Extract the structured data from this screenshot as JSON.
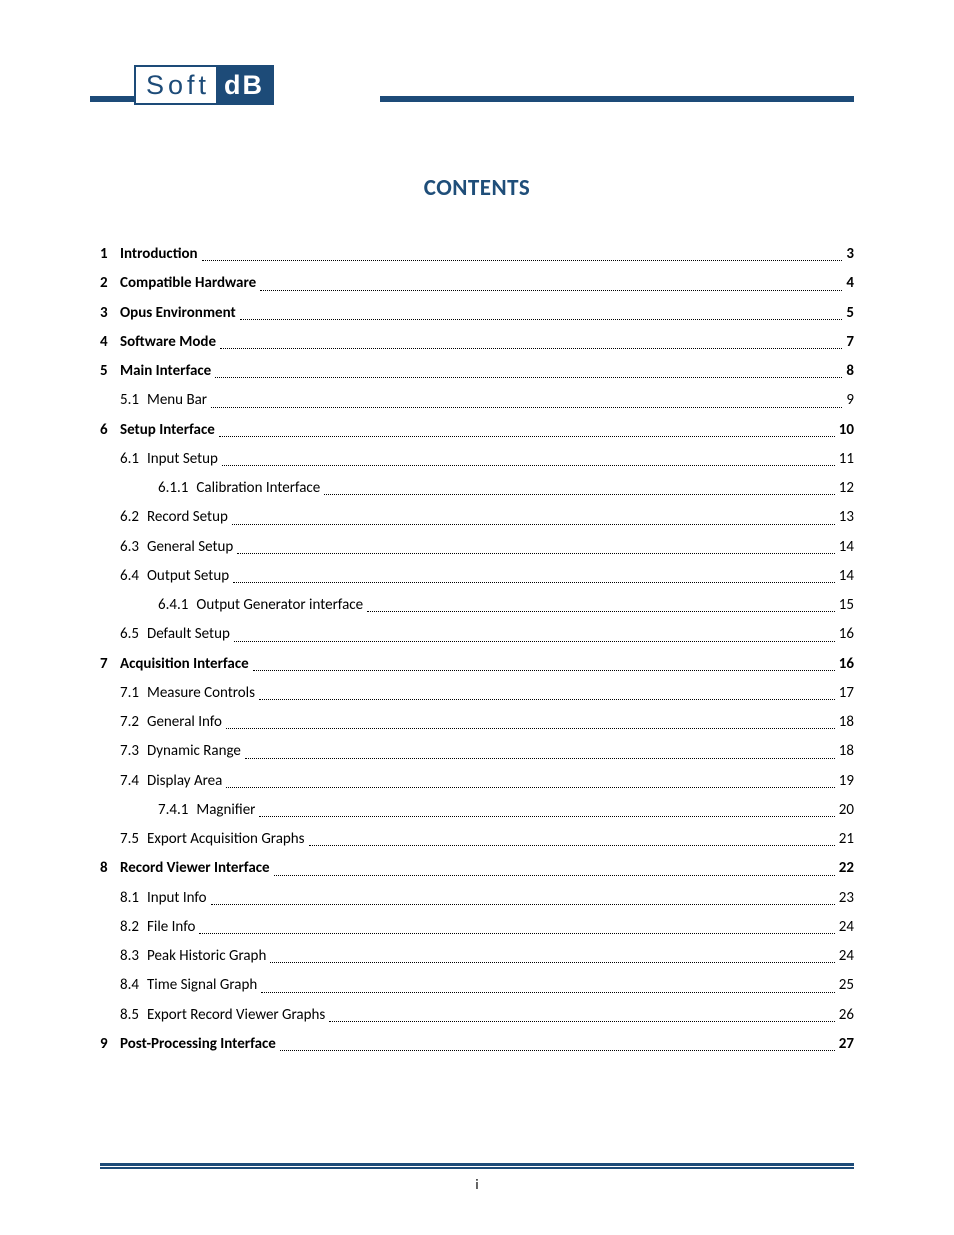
{
  "colors": {
    "brand_blue": "#1d4b78",
    "title_blue": "#1F4E79",
    "text": "#000000",
    "background": "#ffffff"
  },
  "typography": {
    "body_font": "Calibri, 'Segoe UI', Arial, sans-serif",
    "body_size_pt": 11,
    "title_size_pt": 17,
    "title_weight": "700"
  },
  "logo": {
    "left_text": "Soft",
    "right_text": "dB"
  },
  "title": "CONTENTS",
  "page_number": "i",
  "toc": [
    {
      "level": 0,
      "num": "1",
      "sub": "",
      "title": "Introduction",
      "page": "3",
      "bold": true
    },
    {
      "level": 0,
      "num": "2",
      "sub": "",
      "title": "Compatible Hardware",
      "page": "4",
      "bold": true
    },
    {
      "level": 0,
      "num": "3",
      "sub": "",
      "title": "Opus Environment",
      "page": "5",
      "bold": true
    },
    {
      "level": 0,
      "num": "4",
      "sub": "",
      "title": "Software Mode",
      "page": "7",
      "bold": true
    },
    {
      "level": 0,
      "num": "5",
      "sub": "",
      "title": "Main Interface",
      "page": "8",
      "bold": true
    },
    {
      "level": 1,
      "num": "",
      "sub": "5.1",
      "title": "Menu Bar",
      "page": "9",
      "bold": false
    },
    {
      "level": 0,
      "num": "6",
      "sub": "",
      "title": "Setup Interface",
      "page": "10",
      "bold": true
    },
    {
      "level": 1,
      "num": "",
      "sub": "6.1",
      "title": "Input Setup",
      "page": "11",
      "bold": false
    },
    {
      "level": 2,
      "num": "",
      "sub": "6.1.1",
      "title": "Calibration Interface",
      "page": "12",
      "bold": false
    },
    {
      "level": 1,
      "num": "",
      "sub": "6.2",
      "title": "Record Setup",
      "page": "13",
      "bold": false
    },
    {
      "level": 1,
      "num": "",
      "sub": "6.3",
      "title": "General Setup",
      "page": "14",
      "bold": false
    },
    {
      "level": 1,
      "num": "",
      "sub": "6.4",
      "title": "Output Setup",
      "page": "14",
      "bold": false
    },
    {
      "level": 2,
      "num": "",
      "sub": "6.4.1",
      "title": "Output Generator interface",
      "page": "15",
      "bold": false
    },
    {
      "level": 1,
      "num": "",
      "sub": "6.5",
      "title": "Default Setup",
      "page": "16",
      "bold": false
    },
    {
      "level": 0,
      "num": "7",
      "sub": "",
      "title": "Acquisition Interface",
      "page": "16",
      "bold": true
    },
    {
      "level": 1,
      "num": "",
      "sub": "7.1",
      "title": "Measure Controls",
      "page": "17",
      "bold": false
    },
    {
      "level": 1,
      "num": "",
      "sub": "7.2",
      "title": "General Info",
      "page": "18",
      "bold": false
    },
    {
      "level": 1,
      "num": "",
      "sub": "7.3",
      "title": "Dynamic Range",
      "page": "18",
      "bold": false
    },
    {
      "level": 1,
      "num": "",
      "sub": "7.4",
      "title": "Display Area",
      "page": "19",
      "bold": false
    },
    {
      "level": 2,
      "num": "",
      "sub": "7.4.1",
      "title": "Magnifier",
      "page": "20",
      "bold": false
    },
    {
      "level": 1,
      "num": "",
      "sub": "7.5",
      "title": "Export Acquisition Graphs",
      "page": "21",
      "bold": false
    },
    {
      "level": 0,
      "num": "8",
      "sub": "",
      "title": "Record Viewer Interface",
      "page": "22",
      "bold": true
    },
    {
      "level": 1,
      "num": "",
      "sub": "8.1",
      "title": "Input Info",
      "page": "23",
      "bold": false
    },
    {
      "level": 1,
      "num": "",
      "sub": "8.2",
      "title": "File Info",
      "page": "24",
      "bold": false
    },
    {
      "level": 1,
      "num": "",
      "sub": "8.3",
      "title": "Peak Historic Graph",
      "page": "24",
      "bold": false
    },
    {
      "level": 1,
      "num": "",
      "sub": "8.4",
      "title": "Time Signal Graph",
      "page": "25",
      "bold": false
    },
    {
      "level": 1,
      "num": "",
      "sub": "8.5",
      "title": "Export Record Viewer Graphs",
      "page": "26",
      "bold": false
    },
    {
      "level": 0,
      "num": "9",
      "sub": "",
      "title": "Post-Processing Interface",
      "page": "27",
      "bold": true
    }
  ]
}
